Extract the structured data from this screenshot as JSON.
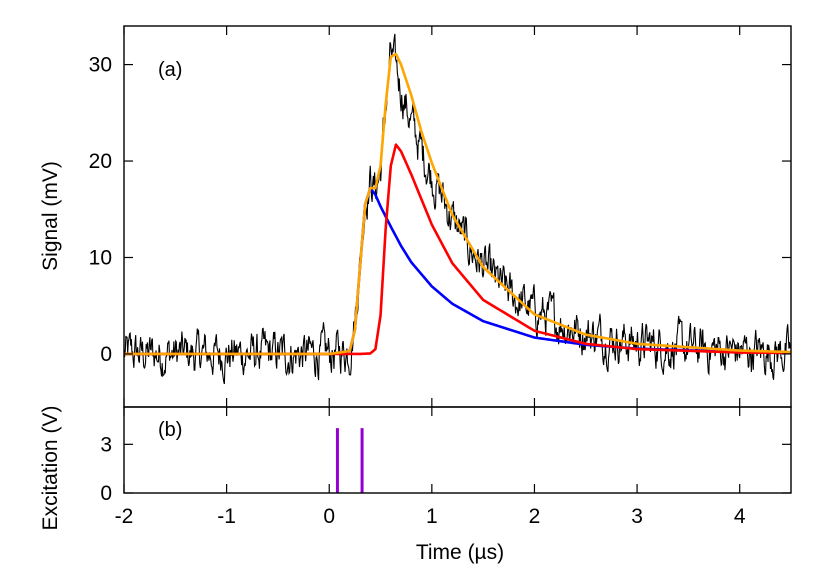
{
  "chart_data": {
    "type": "line",
    "x_axis": {
      "label": "Time (µs)",
      "range": [
        -2,
        4.5
      ],
      "ticks": [
        -2,
        -1,
        0,
        1,
        2,
        3,
        4
      ],
      "tick_labels": [
        "-2",
        "-1",
        "0",
        "1",
        "2",
        "3",
        "4"
      ]
    },
    "panels": [
      {
        "label": "(a)",
        "ylabel": "Signal (mV)",
        "ylim": [
          -5.5,
          34
        ],
        "yticks": [
          0,
          10,
          20,
          30
        ],
        "ytick_labels": [
          "0",
          "10",
          "20",
          "30"
        ],
        "series": [
          {
            "color": "#000000",
            "style": "noisy-measured",
            "x": [
              -2,
              -1.5,
              -1,
              -0.5,
              0,
              0.2,
              0.25,
              0.3,
              0.35,
              0.4,
              0.45,
              0.5,
              0.55,
              0.6,
              0.65,
              0.7,
              0.8,
              0.9,
              1.0,
              1.2,
              1.4,
              1.6,
              1.8,
              2.0,
              2.5,
              3.0,
              3.5,
              4.0,
              4.5
            ],
            "y": [
              0,
              0,
              0,
              0,
              0,
              0.4,
              3.5,
              9.5,
              16.0,
              18.0,
              17.0,
              19.0,
              25.5,
              31.0,
              29.5,
              27.5,
              24.0,
              21.0,
              18.5,
              14.0,
              10.5,
              7.8,
              5.8,
              4.4,
              2.2,
              1.1,
              0.6,
              0.3,
              0.15
            ]
          },
          {
            "color": "#0000ff",
            "x": [
              -2,
              -0.5,
              0,
              0.2,
              0.25,
              0.3,
              0.35,
              0.4,
              0.45,
              0.5,
              0.6,
              0.7,
              0.8,
              1.0,
              1.2,
              1.5,
              2.0,
              2.5,
              3.0,
              4.0,
              4.5
            ],
            "y": [
              0,
              0,
              0,
              0.3,
              2.5,
              9.0,
              15.5,
              17.2,
              16.5,
              15.3,
              13.2,
              11.2,
              9.5,
              7.0,
              5.2,
              3.4,
              1.7,
              0.95,
              0.55,
              0.2,
              0.1
            ]
          },
          {
            "color": "#ff0000",
            "x": [
              -2,
              -0.5,
              0,
              0.3,
              0.4,
              0.45,
              0.5,
              0.55,
              0.6,
              0.65,
              0.7,
              0.8,
              0.9,
              1.0,
              1.2,
              1.5,
              2.0,
              2.5,
              3.0,
              4.0,
              4.5
            ],
            "y": [
              0,
              0,
              0,
              0,
              0.05,
              0.5,
              4.0,
              13.0,
              19.5,
              21.7,
              21.0,
              18.6,
              16.0,
              13.4,
              9.4,
              5.6,
              2.4,
              1.05,
              0.5,
              0.15,
              0.1
            ]
          },
          {
            "color": "#ffa500",
            "x": [
              -2,
              -0.5,
              0,
              0.2,
              0.25,
              0.3,
              0.35,
              0.4,
              0.45,
              0.5,
              0.55,
              0.6,
              0.65,
              0.7,
              0.8,
              0.9,
              1.0,
              1.2,
              1.5,
              2.0,
              2.5,
              3.0,
              4.0,
              4.5
            ],
            "y": [
              0,
              0,
              0,
              0.3,
              2.5,
              9.0,
              15.5,
              17.2,
              17.2,
              19.5,
              25.9,
              30.8,
              31.1,
              30.0,
              26.8,
              23.0,
              19.8,
              14.4,
              9.0,
              4.1,
              2.0,
              1.05,
              0.35,
              0.2
            ]
          }
        ]
      },
      {
        "label": "(b)",
        "ylabel": "Excitation (V)",
        "ylim": [
          0,
          5.3
        ],
        "yticks": [
          0,
          3
        ],
        "ytick_labels": [
          "0",
          "3"
        ],
        "series": [
          {
            "color": "#9400d3",
            "pulses": [
              {
                "x": 0.08,
                "y": 4.0
              },
              {
                "x": 0.32,
                "y": 4.0
              }
            ]
          }
        ]
      }
    ]
  }
}
